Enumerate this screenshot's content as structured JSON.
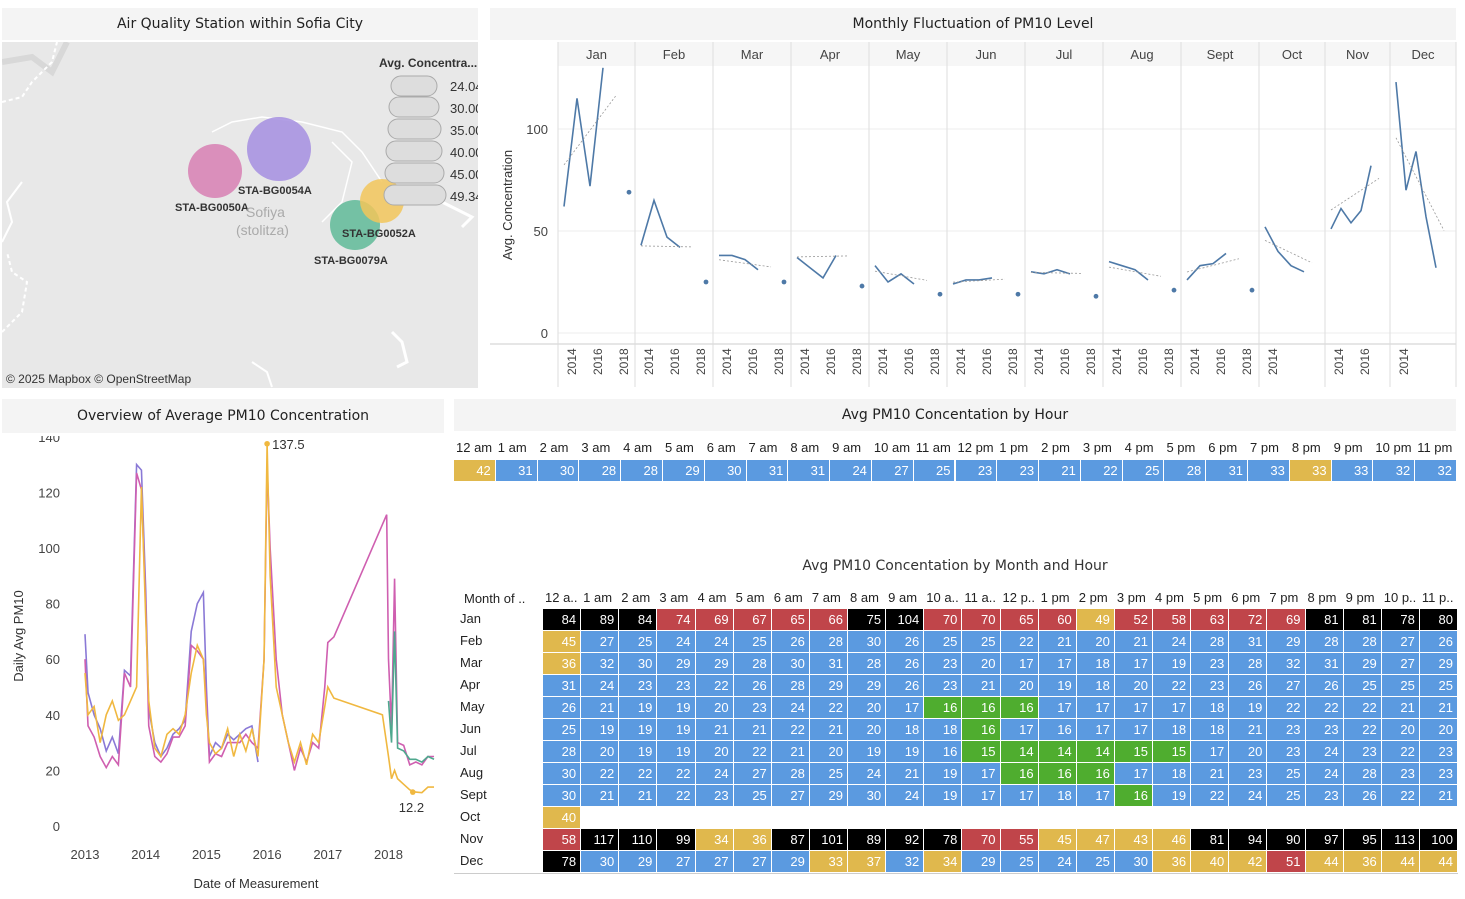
{
  "map": {
    "title": "Air Quality Station within Sofia City",
    "legend_title": "Avg. Concentra...",
    "legend_values": [
      "24.04",
      "30.00",
      "35.00",
      "40.00",
      "45.00",
      "49.34"
    ],
    "city_label_1": "Sofiya",
    "city_label_2": "(stolitza)",
    "attribution": "© 2025 Mapbox  © OpenStreetMap",
    "stations": [
      {
        "name": "STA-BG0050A",
        "color": "#d77fb3",
        "avg": 40
      },
      {
        "name": "STA-BG0054A",
        "color": "#a48ee0",
        "avg": 49.34
      },
      {
        "name": "STA-BG0052A",
        "color": "#f2c55a",
        "avg": 24.04
      },
      {
        "name": "STA-BG0079A",
        "color": "#5fba98",
        "avg": 35
      }
    ]
  },
  "monthly": {
    "title": "Monthly Fluctuation of PM10 Level",
    "ylabel": "Avg. Concentration",
    "months": [
      "Jan",
      "Feb",
      "Mar",
      "Apr",
      "May",
      "Jun",
      "Jul",
      "Aug",
      "Sept",
      "Oct",
      "Nov",
      "Dec"
    ],
    "yticks": [
      0,
      50,
      100
    ],
    "xticks": [
      "2014",
      "2016",
      "2018"
    ],
    "color": "#4e79a7"
  },
  "chart_data": [
    {
      "type": "line",
      "title": "Monthly Fluctuation of PM10 Level",
      "ylabel": "Avg. Concentration",
      "ylim": [
        -5,
        135
      ],
      "x_years": [
        2013.5,
        2014,
        2014.5,
        2015,
        2015.5,
        2016,
        2016.5,
        2017,
        2017.5,
        2018
      ],
      "series": [
        {
          "name": "Jan",
          "values": [
            62,
            115,
            72,
            130
          ],
          "point_2018": 69
        },
        {
          "name": "Feb",
          "values": [
            43,
            65,
            47,
            42
          ],
          "point_2018": 25
        },
        {
          "name": "Mar",
          "values": [
            38,
            38,
            36,
            31
          ],
          "point_2018": 25
        },
        {
          "name": "Apr",
          "values": [
            37,
            32,
            27,
            38
          ],
          "point_2018": 23
        },
        {
          "name": "May",
          "values": [
            33,
            25,
            29,
            24
          ],
          "point_2018": 19
        },
        {
          "name": "Jun",
          "values": [
            24,
            26,
            26,
            27
          ],
          "point_2018": 19
        },
        {
          "name": "Jul",
          "values": [
            30,
            29,
            31,
            29
          ],
          "point_2018": 18
        },
        {
          "name": "Aug",
          "values": [
            35,
            33,
            31,
            26
          ],
          "point_2018": 21
        },
        {
          "name": "Sept",
          "values": [
            26,
            33,
            34,
            39
          ],
          "point_2018": 21
        },
        {
          "name": "Oct",
          "values": [
            52,
            40,
            33,
            30
          ]
        },
        {
          "name": "Nov",
          "values": [
            51,
            61,
            54,
            60,
            82
          ]
        },
        {
          "name": "Dec",
          "values": [
            123,
            70,
            89,
            57,
            32
          ]
        }
      ]
    },
    {
      "type": "line",
      "title": "Overview of Average PM10 Concentration",
      "xlabel": "Date of Measurement",
      "ylabel": "Daily Avg PM10",
      "ylim": [
        0,
        140
      ],
      "xticks": [
        "2013",
        "2014",
        "2015",
        "2016",
        "2017",
        "2018"
      ],
      "yticks": [
        0,
        20,
        40,
        60,
        80,
        100,
        120,
        140
      ],
      "annotations": [
        {
          "label": "137.5",
          "x": 2016.0,
          "y": 137.5
        },
        {
          "label": "12.2",
          "x": 2018.4,
          "y": 12.2
        }
      ],
      "series": [
        {
          "name": "STA-BG0054A",
          "color": "#8a79d6",
          "x": [
            2013.0,
            2013.05,
            2013.15,
            2013.25,
            2013.35,
            2013.45,
            2013.55,
            2013.65,
            2013.75,
            2013.85,
            2013.93,
            2014.0,
            2014.05,
            2014.15,
            2014.25,
            2014.35,
            2014.45,
            2014.55,
            2014.65,
            2014.75,
            2014.85,
            2014.95,
            2015.0,
            2015.05,
            2015.15,
            2015.25,
            2015.35,
            2015.45,
            2015.55,
            2015.65,
            2015.75,
            2015.85
          ],
          "y": [
            69,
            48,
            40,
            35,
            27,
            32,
            26,
            56,
            54,
            130,
            128,
            85,
            42,
            30,
            25,
            28,
            33,
            35,
            38,
            70,
            80,
            84,
            50,
            25,
            30,
            28,
            33,
            31,
            33,
            35,
            36,
            23
          ]
        },
        {
          "name": "STA-BG0050A",
          "color": "#cf5fb0",
          "x": [
            2013.0,
            2013.05,
            2013.15,
            2013.25,
            2013.35,
            2013.45,
            2013.55,
            2013.65,
            2013.75,
            2013.85,
            2013.93,
            2014.0,
            2014.05,
            2014.15,
            2014.25,
            2014.35,
            2014.45,
            2014.55,
            2014.65,
            2014.75,
            2014.85,
            2014.95,
            2015.0,
            2015.05,
            2015.15,
            2015.25,
            2015.35,
            2015.45,
            2015.55,
            2015.65,
            2015.75,
            2015.85,
            2015.95,
            2016.0,
            2016.05,
            2016.15,
            2016.25,
            2016.35,
            2016.45,
            2016.55,
            2016.65,
            2016.75,
            2016.85,
            2016.95,
            2017.0,
            2017.1,
            2017.97,
            2018.0,
            2018.05,
            2018.1,
            2018.15,
            2018.25,
            2018.35,
            2018.45,
            2018.55,
            2018.65,
            2018.75
          ],
          "y": [
            60,
            36,
            32,
            25,
            21,
            25,
            22,
            55,
            50,
            127,
            121,
            80,
            36,
            25,
            23,
            26,
            32,
            32,
            36,
            65,
            63,
            60,
            45,
            23,
            26,
            25,
            30,
            30,
            30,
            33,
            30,
            28,
            60,
            130,
            100,
            60,
            40,
            30,
            20,
            28,
            23,
            30,
            28,
            50,
            66,
            68,
            112,
            60,
            35,
            89,
            30,
            29,
            22,
            23,
            22,
            25,
            25
          ]
        },
        {
          "name": "STA-BG0052A",
          "color": "#f0b840",
          "x": [
            2013.0,
            2013.05,
            2013.15,
            2013.25,
            2013.35,
            2013.45,
            2013.55,
            2013.65,
            2013.75,
            2013.85,
            2013.93,
            2014.0,
            2014.05,
            2014.15,
            2014.25,
            2014.35,
            2014.45,
            2014.55,
            2014.65,
            2014.75,
            2014.85,
            2014.95,
            2015.0,
            2015.05,
            2015.15,
            2015.25,
            2015.35,
            2015.45,
            2015.55,
            2015.65,
            2015.75,
            2015.85,
            2015.95,
            2016.0,
            2016.05,
            2016.15,
            2016.25,
            2016.35,
            2016.45,
            2016.55,
            2016.65,
            2016.75,
            2016.85,
            2016.95,
            2017.0,
            2017.1,
            2017.9,
            2018.0,
            2018.05,
            2018.1,
            2018.15,
            2018.25,
            2018.35,
            2018.45,
            2018.55,
            2018.65,
            2018.75
          ],
          "y": [
            55,
            40,
            43,
            30,
            40,
            45,
            38,
            40,
            45,
            50,
            122,
            75,
            45,
            28,
            25,
            33,
            35,
            33,
            40,
            55,
            65,
            60,
            40,
            30,
            26,
            28,
            35,
            25,
            33,
            27,
            35,
            25,
            60,
            137.5,
            90,
            50,
            40,
            30,
            23,
            30,
            22,
            33,
            30,
            43,
            50,
            46,
            40,
            25,
            17,
            20,
            17,
            15,
            13,
            12.2,
            12,
            14,
            14
          ]
        },
        {
          "name": "STA-BG0079A",
          "color": "#4fa88e",
          "x": [
            2018.0,
            2018.05,
            2018.1,
            2018.15,
            2018.25,
            2018.35,
            2018.45,
            2018.55,
            2018.65,
            2018.75
          ],
          "y": [
            45,
            30,
            70,
            28,
            27,
            24,
            24,
            23,
            25,
            24
          ]
        }
      ]
    },
    {
      "type": "heatmap",
      "title": "Avg PM10 Concentation by Hour",
      "categories": [
        "12 am",
        "1 am",
        "2 am",
        "3 am",
        "4 am",
        "5 am",
        "6 am",
        "7 am",
        "8 am",
        "9 am",
        "10 am",
        "11 am",
        "12 pm",
        "1 pm",
        "2 pm",
        "3 pm",
        "4 pm",
        "5 pm",
        "6 pm",
        "7 pm",
        "8 pm",
        "9 pm",
        "10 pm",
        "11 pm"
      ],
      "values": [
        42,
        31,
        30,
        28,
        28,
        29,
        30,
        31,
        31,
        24,
        27,
        25,
        23,
        23,
        21,
        22,
        25,
        28,
        31,
        33,
        33,
        33,
        32,
        32
      ],
      "highlight": [
        0,
        20
      ]
    },
    {
      "type": "heatmap",
      "title": "Avg PM10 Concentation by Month and Hour",
      "row_header": "Month of ..",
      "categories": [
        "12 a..",
        "1 am",
        "2 am",
        "3 am",
        "4 am",
        "5 am",
        "6 am",
        "7 am",
        "8 am",
        "9 am",
        "10 a..",
        "11 a..",
        "12 p..",
        "1 pm",
        "2 pm",
        "3 pm",
        "4 pm",
        "5 pm",
        "6 pm",
        "7 pm",
        "8 pm",
        "9 pm",
        "10 p..",
        "11 p.."
      ],
      "rows": [
        "Jan",
        "Feb",
        "Mar",
        "Apr",
        "May",
        "Jun",
        "Jul",
        "Aug",
        "Sept",
        "Oct",
        "Nov",
        "Dec"
      ],
      "values": [
        [
          84,
          89,
          84,
          74,
          69,
          67,
          65,
          66,
          75,
          104,
          70,
          70,
          65,
          60,
          49,
          52,
          58,
          63,
          72,
          69,
          81,
          81,
          78,
          80
        ],
        [
          45,
          27,
          25,
          24,
          24,
          25,
          26,
          28,
          30,
          26,
          25,
          25,
          22,
          21,
          20,
          21,
          24,
          28,
          31,
          29,
          28,
          28,
          27,
          26
        ],
        [
          36,
          32,
          30,
          29,
          29,
          28,
          30,
          31,
          28,
          26,
          23,
          20,
          17,
          17,
          18,
          17,
          19,
          23,
          28,
          32,
          31,
          29,
          27,
          29
        ],
        [
          31,
          24,
          23,
          23,
          22,
          26,
          28,
          29,
          29,
          26,
          23,
          21,
          20,
          19,
          18,
          20,
          22,
          23,
          26,
          27,
          26,
          25,
          25,
          25
        ],
        [
          26,
          21,
          19,
          19,
          20,
          23,
          24,
          22,
          20,
          17,
          16,
          16,
          16,
          17,
          17,
          17,
          17,
          18,
          19,
          22,
          22,
          22,
          21,
          21
        ],
        [
          25,
          19,
          19,
          19,
          21,
          21,
          22,
          21,
          20,
          18,
          18,
          16,
          17,
          16,
          17,
          17,
          18,
          18,
          21,
          23,
          23,
          22,
          20,
          20
        ],
        [
          28,
          20,
          19,
          19,
          20,
          22,
          21,
          20,
          19,
          19,
          16,
          15,
          14,
          14,
          14,
          15,
          15,
          17,
          20,
          23,
          24,
          23,
          22,
          23
        ],
        [
          30,
          22,
          22,
          22,
          24,
          27,
          28,
          25,
          24,
          21,
          19,
          17,
          16,
          16,
          16,
          17,
          18,
          21,
          23,
          25,
          24,
          28,
          23,
          23
        ],
        [
          30,
          21,
          21,
          22,
          23,
          25,
          27,
          29,
          30,
          24,
          19,
          17,
          17,
          18,
          17,
          16,
          19,
          22,
          24,
          25,
          23,
          26,
          22,
          21
        ],
        [
          40,
          null,
          null,
          null,
          null,
          null,
          null,
          null,
          null,
          null,
          null,
          null,
          null,
          null,
          null,
          null,
          null,
          null,
          null,
          null,
          null,
          null,
          null,
          null
        ],
        [
          58,
          117,
          110,
          99,
          34,
          36,
          87,
          101,
          89,
          92,
          78,
          70,
          55,
          45,
          47,
          43,
          46,
          81,
          94,
          90,
          97,
          95,
          113,
          100
        ],
        [
          78,
          30,
          29,
          27,
          27,
          27,
          29,
          33,
          37,
          32,
          34,
          29,
          25,
          24,
          25,
          30,
          36,
          40,
          42,
          51,
          44,
          36,
          44,
          44
        ]
      ],
      "colors": {
        "black": "#000000",
        "red": "#c0454a",
        "yellow": "#e0b84d",
        "blue": "#5b9ae0",
        "green": "#4fad2f"
      },
      "color_codes": [
        "KKKRRRRRKKRRRRYRRRRRKKKK",
        "YBBBBBBBBBBBBBBBBBBBBBBB",
        "YBBBBBBBBBBBBBBBBBBBBBBB",
        "BBBBBBBBBBBBBBBBBBBBBBBB",
        "BBBBBBBBBBGGGBBBBBBBBBBB",
        "BBBBBBBBBBBGBBBBBBBBBBBB",
        "BBBBBBBBBBBGGGGGGBBBBBBB",
        "BBBBBBBBBBBBGGGBBBBBBBBB",
        "BBBBBBBBBBBBBBBGBBBBBBBB",
        "YXXXXXXXXXXXXXXXXXXXXXXX",
        "RKKKYYKKKKKRRYYYYKKKKKKK",
        "KBBBBBBYYBYBBBBBYYYRYYYY"
      ]
    }
  ],
  "overview": {
    "title": "Overview of Average PM10 Concentration",
    "xlabel": "Date of Measurement",
    "ylabel": "Daily Avg PM10"
  },
  "hour": {
    "title_bold": "Avg PM10 Concentation",
    "title_rest": " by Hour"
  },
  "month_hour": {
    "title_bold": "Avg PM10 Concentation",
    "title_rest": " by Month and Hour"
  }
}
